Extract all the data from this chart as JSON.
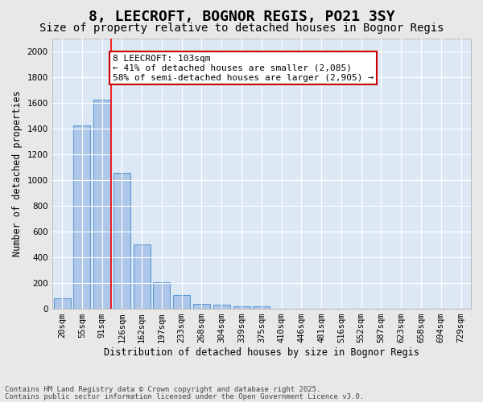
{
  "title": "8, LEECROFT, BOGNOR REGIS, PO21 3SY",
  "subtitle": "Size of property relative to detached houses in Bognor Regis",
  "xlabel": "Distribution of detached houses by size in Bognor Regis",
  "ylabel": "Number of detached properties",
  "bins": [
    "20sqm",
    "55sqm",
    "91sqm",
    "126sqm",
    "162sqm",
    "197sqm",
    "233sqm",
    "268sqm",
    "304sqm",
    "339sqm",
    "375sqm",
    "410sqm",
    "446sqm",
    "481sqm",
    "516sqm",
    "552sqm",
    "587sqm",
    "623sqm",
    "658sqm",
    "694sqm",
    "729sqm"
  ],
  "bar_heights": [
    80,
    1420,
    1620,
    1055,
    500,
    205,
    105,
    40,
    30,
    20,
    18,
    0,
    0,
    0,
    0,
    0,
    0,
    0,
    0,
    0,
    0
  ],
  "bar_color": "#aec6e8",
  "bar_edge_color": "#5b9bd5",
  "background_color": "#dde8f5",
  "grid_color": "#ffffff",
  "red_line_x": 2.45,
  "annotation_text": "8 LEECROFT: 103sqm\n← 41% of detached houses are smaller (2,085)\n58% of semi-detached houses are larger (2,905) →",
  "annotation_box_color": "#ffffff",
  "annotation_box_edge": "#cc0000",
  "ylim": [
    0,
    2100
  ],
  "yticks": [
    0,
    200,
    400,
    600,
    800,
    1000,
    1200,
    1400,
    1600,
    1800,
    2000
  ],
  "footer1": "Contains HM Land Registry data © Crown copyright and database right 2025.",
  "footer2": "Contains public sector information licensed under the Open Government Licence v3.0.",
  "title_fontsize": 13,
  "subtitle_fontsize": 10,
  "axis_label_fontsize": 8.5,
  "tick_fontsize": 7.5,
  "annotation_fontsize": 8,
  "footer_fontsize": 6.5
}
